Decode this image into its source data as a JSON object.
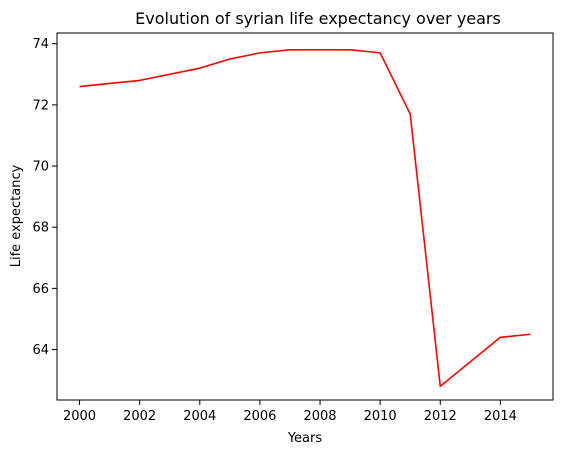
{
  "chart_data": {
    "type": "line",
    "title": "Evolution of syrian life expectancy over years",
    "xlabel": "Years",
    "ylabel": "Life expectancy",
    "xlim": [
      1999.25,
      2015.75
    ],
    "ylim": [
      62.35,
      74.35
    ],
    "grid": false,
    "xticks": [
      2000,
      2002,
      2004,
      2006,
      2008,
      2010,
      2012,
      2014
    ],
    "yticks": [
      64,
      66,
      68,
      70,
      72,
      74
    ],
    "series": [
      {
        "color": "#ff0000",
        "x": [
          2000,
          2002,
          2004,
          2005,
          2006,
          2007,
          2008,
          2009,
          2010,
          2011,
          2012,
          2014,
          2015
        ],
        "y": [
          72.6,
          72.8,
          73.2,
          73.5,
          73.7,
          73.8,
          73.8,
          73.8,
          73.7,
          71.7,
          62.8,
          64.4,
          64.5
        ]
      }
    ]
  }
}
